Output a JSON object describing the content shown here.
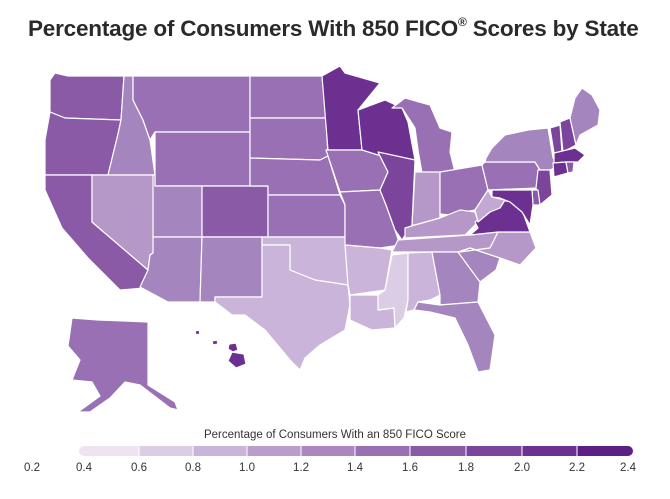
{
  "title": "Percentage of Consumers With 850 FICO",
  "title_mark": "®",
  "title_end": " Scores by State",
  "legend": {
    "title": "Percentage of Consumers With an 850 FICO Score",
    "ticks": [
      "0.2",
      "0.4",
      "0.6",
      "0.8",
      "1.0",
      "1.2",
      "1.4",
      "1.6",
      "1.8",
      "2.0",
      "2.2",
      "2.4"
    ],
    "colors": [
      "#ede3f1",
      "#dccde6",
      "#cbb4d9",
      "#bb9dcd",
      "#ab86c1",
      "#9a70b4",
      "#8a5aa7",
      "#7b459b",
      "#6c3190",
      "#5e1f85"
    ]
  },
  "states": {
    "WA": "#8a5aa7",
    "OR": "#8a5aa7",
    "CA": "#8a5aa7",
    "ID": "#a585bd",
    "NV": "#b597c8",
    "MT": "#9a70b4",
    "WY": "#9a70b4",
    "UT": "#a585bd",
    "AZ": "#a585bd",
    "CO": "#8a5aa7",
    "NM": "#a585bd",
    "ND": "#9a70b4",
    "SD": "#9a70b4",
    "NE": "#9a70b4",
    "KS": "#9a70b4",
    "OK": "#cbb4d9",
    "TX": "#cbb4d9",
    "MN": "#6c3190",
    "IA": "#9a70b4",
    "MO": "#9a70b4",
    "AR": "#cbb4d9",
    "LA": "#cbb4d9",
    "WI": "#6c3190",
    "IL": "#7b459b",
    "MI": "#9a70b4",
    "IN": "#b597c8",
    "OH": "#9a70b4",
    "KY": "#b597c8",
    "TN": "#b597c8",
    "MS": "#dccde6",
    "AL": "#cbb4d9",
    "GA": "#a585bd",
    "FL": "#a585bd",
    "SC": "#a585bd",
    "NC": "#b597c8",
    "VA": "#6c3190",
    "WV": "#c3a8d3",
    "PA": "#9a70b4",
    "NY": "#a585bd",
    "VT": "#7b459b",
    "NH": "#7b459b",
    "ME": "#a585bd",
    "MA": "#6c3190",
    "CT": "#6c3190",
    "RI": "#8a5aa7",
    "NJ": "#7b459b",
    "DE": "#8a5aa7",
    "MD": "#6c3190",
    "AK": "#9a70b4",
    "HI": "#6c3190"
  }
}
